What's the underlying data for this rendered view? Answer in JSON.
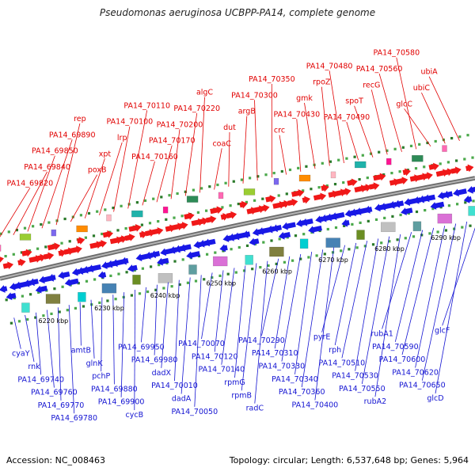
{
  "title": "Pseudomonas aeruginosa UCBPP-PA14, complete genome",
  "footer": {
    "accession_label": "Accession:",
    "accession": "NC_008463",
    "topology_label": "Topology:",
    "topology": "circular",
    "length_label": "Length:",
    "length": "6,537,648 bp",
    "genes_label": "Genes:",
    "genes": "5,964"
  },
  "ticks": [
    "6220 kbp",
    "6230 kbp",
    "6240 kbp",
    "6250 kbp",
    "6260 kbp",
    "6270 kbp",
    "6280 kbp",
    "6290 kbp"
  ],
  "colors": {
    "forward_strand_labels": "#e10000",
    "reverse_strand_labels": "#1414d2",
    "backbone": "#8c8c8c"
  },
  "forward_genes": [
    "PA14_69820",
    "PA14_69840",
    "PA14_69850",
    "PA14_69890",
    "rep",
    "poxB",
    "xpt",
    "lrp",
    "PA14_70100",
    "PA14_70110",
    "PA14_70160",
    "PA14_70170",
    "PA14_70200",
    "PA14_70220",
    "algC",
    "coaC",
    "dut",
    "argB",
    "PA14_70300",
    "PA14_70350",
    "crc",
    "PA14_70430",
    "gmk",
    "rpoZ",
    "PA14_70480",
    "PA14_70490",
    "spoT",
    "recG",
    "PA14_70560",
    "PA14_70580",
    "glcC",
    "ubiC",
    "ubiA"
  ],
  "reverse_genes": [
    "cyaY",
    "rnk",
    "PA14_69740",
    "PA14_69760",
    "PA14_69770",
    "PA14_69780",
    "amtB",
    "glnK",
    "pchP",
    "PA14_69880",
    "PA14_69900",
    "cycB",
    "PA14_69950",
    "PA14_69980",
    "dadX",
    "PA14_70010",
    "dadA",
    "PA14_70050",
    "PA14_70070",
    "PA14_70120",
    "PA14_70140",
    "rpmG",
    "rpmB",
    "radC",
    "PA14_70290",
    "PA14_70310",
    "PA14_70330",
    "PA14_70340",
    "PA14_70360",
    "PA14_70400",
    "pyrE",
    "rph",
    "PA14_70510",
    "PA14_70530",
    "PA14_70550",
    "rubA2",
    "rubA1",
    "PA14_70590",
    "PA14_70600",
    "PA14_70620",
    "PA14_70650",
    "glcD",
    "glcF"
  ]
}
